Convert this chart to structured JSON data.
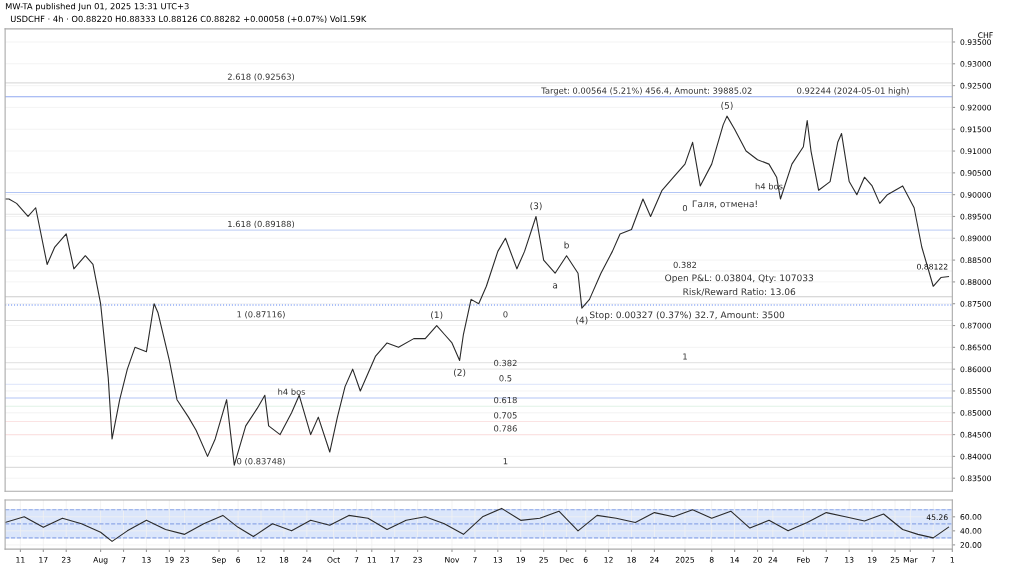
{
  "chart_data": [
    {
      "type": "line",
      "title": "MW-TA published Jun 01, 2025 13:31 UTC+3",
      "subtitle": "USDCHF · 4h · O0.88220 H0.88333 L0.88126 C0.88282 +0.00058 (+0.07%) Vol1.59K",
      "ylabel": "CHF",
      "series": [
        {
          "color": "#2b2b2b",
          "x": [
            "2024-07-07",
            "2024-07-08",
            "2024-07-10",
            "2024-07-13",
            "2024-07-15",
            "2024-07-18",
            "2024-07-20",
            "2024-07-23",
            "2024-07-25",
            "2024-07-28",
            "2024-07-30",
            "2024-08-01",
            "2024-08-03",
            "2024-08-04",
            "2024-08-06",
            "2024-08-08",
            "2024-08-10",
            "2024-08-13",
            "2024-08-15",
            "2024-08-16",
            "2024-08-19",
            "2024-08-21",
            "2024-08-24",
            "2024-08-26",
            "2024-08-29",
            "2024-08-31",
            "2024-09-03",
            "2024-09-05",
            "2024-09-08",
            "2024-09-11",
            "2024-09-13",
            "2024-09-14",
            "2024-09-17",
            "2024-09-20",
            "2024-09-22",
            "2024-09-25",
            "2024-09-27",
            "2024-09-30",
            "2024-10-02",
            "2024-10-04",
            "2024-10-06",
            "2024-10-08",
            "2024-10-10",
            "2024-10-12",
            "2024-10-15",
            "2024-10-18",
            "2024-10-22",
            "2024-10-25",
            "2024-10-28",
            "2024-10-30",
            "2024-11-01",
            "2024-11-03",
            "2024-11-04",
            "2024-11-06",
            "2024-11-08",
            "2024-11-10",
            "2024-11-13",
            "2024-11-15",
            "2024-11-18",
            "2024-11-20",
            "2024-11-23",
            "2024-11-25",
            "2024-11-28",
            "2024-12-01",
            "2024-12-04",
            "2024-12-05",
            "2024-12-07",
            "2024-12-10",
            "2024-12-13",
            "2024-12-15",
            "2024-12-18",
            "2024-12-21",
            "2024-12-23",
            "2024-12-26",
            "2024-12-29",
            "2025-01-01",
            "2025-01-03",
            "2025-01-05",
            "2025-01-08",
            "2025-01-11",
            "2025-01-12",
            "2025-01-14",
            "2025-01-17",
            "2025-01-20",
            "2025-01-23",
            "2025-01-25",
            "2025-01-26",
            "2025-01-29",
            "2025-02-01",
            "2025-02-02",
            "2025-02-03",
            "2025-02-05",
            "2025-02-08",
            "2025-02-10",
            "2025-02-11",
            "2025-02-13",
            "2025-02-15",
            "2025-02-17",
            "2025-02-19",
            "2025-02-21",
            "2025-02-23",
            "2025-02-27",
            "2025-03-02",
            "2025-03-04",
            "2025-03-07",
            "2025-03-09",
            "2025-03-11"
          ],
          "values": [
            0.899,
            0.899,
            0.898,
            0.895,
            0.897,
            0.884,
            0.888,
            0.891,
            0.883,
            0.886,
            0.884,
            0.875,
            0.858,
            0.844,
            0.853,
            0.86,
            0.865,
            0.864,
            0.875,
            0.873,
            0.862,
            0.853,
            0.849,
            0.846,
            0.84,
            0.844,
            0.853,
            0.838,
            0.847,
            0.851,
            0.854,
            0.847,
            0.845,
            0.85,
            0.854,
            0.845,
            0.849,
            0.841,
            0.849,
            0.856,
            0.86,
            0.855,
            0.859,
            0.863,
            0.866,
            0.865,
            0.867,
            0.867,
            0.87,
            0.868,
            0.866,
            0.862,
            0.868,
            0.876,
            0.875,
            0.879,
            0.887,
            0.89,
            0.883,
            0.887,
            0.895,
            0.885,
            0.882,
            0.886,
            0.882,
            0.874,
            0.876,
            0.882,
            0.887,
            0.891,
            0.892,
            0.899,
            0.895,
            0.901,
            0.904,
            0.907,
            0.912,
            0.902,
            0.907,
            0.916,
            0.918,
            0.915,
            0.91,
            0.908,
            0.907,
            0.904,
            0.899,
            0.907,
            0.911,
            0.917,
            0.91,
            0.901,
            0.903,
            0.912,
            0.914,
            0.903,
            0.9,
            0.904,
            0.902,
            0.898,
            0.9,
            0.902,
            0.897,
            0.888,
            0.879,
            0.881,
            0.88122
          ]
        }
      ],
      "xlim": [
        "2024-07-07",
        "2025-03-12"
      ],
      "ylim": [
        0.832,
        0.938
      ],
      "yticks": [
        {
          "value": 0.835,
          "label": "0.83500"
        },
        {
          "value": 0.84,
          "label": "0.84000"
        },
        {
          "value": 0.845,
          "label": "0.84500"
        },
        {
          "value": 0.85,
          "label": "0.85000"
        },
        {
          "value": 0.855,
          "label": "0.85500"
        },
        {
          "value": 0.86,
          "label": "0.86000"
        },
        {
          "value": 0.865,
          "label": "0.86500"
        },
        {
          "value": 0.87,
          "label": "0.87000"
        },
        {
          "value": 0.875,
          "label": "0.87500"
        },
        {
          "value": 0.88,
          "label": "0.88000"
        },
        {
          "value": 0.885,
          "label": "0.88500"
        },
        {
          "value": 0.89,
          "label": "0.89000"
        },
        {
          "value": 0.895,
          "label": "0.89500"
        },
        {
          "value": 0.9,
          "label": "0.90000"
        },
        {
          "value": 0.905,
          "label": "0.90500"
        },
        {
          "value": 0.91,
          "label": "0.91000"
        },
        {
          "value": 0.915,
          "label": "0.91500"
        },
        {
          "value": 0.92,
          "label": "0.92000"
        },
        {
          "value": 0.925,
          "label": "0.92500"
        },
        {
          "value": 0.93,
          "label": "0.93000"
        },
        {
          "value": 0.935,
          "label": "0.93500"
        }
      ],
      "tick_labels": "y",
      "grid": true,
      "ref_lines": [
        {
          "axis": "y",
          "value": 0.92244,
          "color": "#90a9f0",
          "line_style": "solid"
        },
        {
          "axis": "y",
          "value": 0.8747,
          "color": "#5b83f0",
          "line_style": "dotted"
        },
        {
          "axis": "y",
          "value": 0.92563,
          "color": "#dddddd",
          "line_style": "solid"
        },
        {
          "axis": "y",
          "value": 0.89188,
          "color": "#c9d6f7",
          "line_style": "solid"
        },
        {
          "axis": "y",
          "value": 0.87116,
          "color": "#dddddd",
          "line_style": "solid"
        },
        {
          "axis": "y",
          "value": 0.83748,
          "color": "#dddddd",
          "line_style": "solid"
        },
        {
          "axis": "y",
          "value": 0.86,
          "color": "#eeeeee",
          "line_style": "solid"
        },
        {
          "axis": "y",
          "value": 0.8565,
          "color": "#e3e9fb",
          "line_style": "solid"
        },
        {
          "axis": "y",
          "value": 0.8515,
          "color": "#e0f2e6",
          "line_style": "solid"
        },
        {
          "axis": "y",
          "value": 0.848,
          "color": "#fbe3e3",
          "line_style": "solid"
        },
        {
          "axis": "y",
          "value": 0.845,
          "color": "#fbe3e3",
          "line_style": "solid"
        },
        {
          "axis": "y",
          "value": 0.8955,
          "color": "#e6e6e6",
          "line_style": "solid"
        },
        {
          "axis": "y",
          "value": 0.8825,
          "color": "#eeeeee",
          "line_style": "solid"
        },
        {
          "axis": "y",
          "value": 0.8615,
          "color": "#e6e6e6",
          "line_style": "solid"
        },
        {
          "axis": "y",
          "value": 0.9005,
          "color": "#b3c6f5",
          "line_style": "solid"
        },
        {
          "axis": "y",
          "value": 0.8534,
          "color": "#b3c6f5",
          "line_style": "solid"
        },
        {
          "axis": "y",
          "value": 0.8766,
          "color": "#cccccc",
          "line_style": "solid"
        }
      ],
      "annotations": [
        {
          "text": "(1)",
          "x": "2024-10-28",
          "y": 0.87
        },
        {
          "text": "(2)",
          "x": "2024-11-03",
          "y": 0.862
        },
        {
          "text": "(3)",
          "x": "2024-11-23",
          "y": 0.895
        },
        {
          "text": "(4)",
          "x": "2024-12-05",
          "y": 0.874
        },
        {
          "text": "(5)",
          "x": "2025-01-12",
          "y": 0.918
        },
        {
          "text": "a",
          "x": "2024-11-28",
          "y": 0.882
        },
        {
          "text": "b",
          "x": "2024-12-01",
          "y": 0.886
        },
        "Галя, отмена!",
        {
          "text": "h4 bos",
          "x": "2025-01-23",
          "y": 0.9005
        },
        {
          "text": "h4 bos",
          "x": "2024-09-20",
          "y": 0.8534
        },
        {
          "text": "2.618 (0.92563)",
          "x": "2024-09-12",
          "y": 0.92563
        },
        {
          "text": "1.618 (0.89188)",
          "x": "2024-09-12",
          "y": 0.89188
        },
        {
          "text": "1 (0.87116)",
          "x": "2024-09-12",
          "y": 0.87116
        },
        {
          "text": "0 (0.83748)",
          "x": "2024-09-12",
          "y": 0.83748
        },
        {
          "text": "0",
          "x": "2024-11-15",
          "y": 0.87116
        },
        {
          "text": "0.382",
          "x": "2024-11-15",
          "y": 0.86
        },
        {
          "text": "0.5",
          "x": "2024-11-15",
          "y": 0.8565
        },
        {
          "text": "0.618",
          "x": "2024-11-15",
          "y": 0.8515
        },
        {
          "text": "0.705",
          "x": "2024-11-15",
          "y": 0.848
        },
        {
          "text": "0.786",
          "x": "2024-11-15",
          "y": 0.845
        },
        {
          "text": "1",
          "x": "2024-11-15",
          "y": 0.83748
        },
        {
          "text": "1",
          "x": "2025-01-01",
          "y": 0.8615
        },
        {
          "text": "0",
          "x": "2025-01-01",
          "y": 0.8955
        },
        {
          "text": "0.382",
          "x": "2025-01-01",
          "y": 0.8825
        },
        {
          "text": "0.92244 (2024-05-01 high)",
          "x": "2025-02-14",
          "y": 0.92244
        },
        {
          "text": "Target: 0.00564 (5.21%) 456.4, Amount: 39885.02",
          "x": "2024-12-22",
          "y": 0.92244
        },
        "Open P&L: 0.03804, Qty: 107033",
        "Risk/Reward Ratio: 13.06",
        "Stop: 0.00327 (0.37%) 32.7, Amount: 3500",
        {
          "text": "0.88122",
          "x": "2025-03-11",
          "y": 0.88122
        }
      ]
    },
    {
      "type": "line",
      "series": [
        {
          "color": "#2b2b2b",
          "x": [
            "2024-07-07",
            "2024-07-12",
            "2024-07-17",
            "2024-07-22",
            "2024-07-27",
            "2024-08-01",
            "2024-08-04",
            "2024-08-08",
            "2024-08-13",
            "2024-08-18",
            "2024-08-23",
            "2024-08-28",
            "2024-09-02",
            "2024-09-06",
            "2024-09-10",
            "2024-09-15",
            "2024-09-20",
            "2024-09-25",
            "2024-09-30",
            "2024-10-05",
            "2024-10-10",
            "2024-10-15",
            "2024-10-20",
            "2024-10-25",
            "2024-10-30",
            "2024-11-04",
            "2024-11-09",
            "2024-11-14",
            "2024-11-19",
            "2024-11-24",
            "2024-11-29",
            "2024-12-04",
            "2024-12-09",
            "2024-12-14",
            "2024-12-19",
            "2024-12-24",
            "2024-12-29",
            "2025-01-03",
            "2025-01-08",
            "2025-01-13",
            "2025-01-18",
            "2025-01-23",
            "2025-01-28",
            "2025-02-02",
            "2025-02-07",
            "2025-02-12",
            "2025-02-17",
            "2025-02-22",
            "2025-02-27",
            "2025-03-03",
            "2025-03-07",
            "2025-03-11"
          ],
          "values": [
            52,
            60,
            45,
            58,
            50,
            38,
            25,
            40,
            55,
            42,
            35,
            50,
            62,
            45,
            32,
            50,
            40,
            55,
            48,
            62,
            58,
            42,
            55,
            60,
            50,
            35,
            60,
            72,
            55,
            58,
            68,
            40,
            62,
            58,
            52,
            66,
            60,
            70,
            58,
            68,
            44,
            55,
            40,
            52,
            66,
            60,
            54,
            64,
            42,
            35,
            30,
            45.26
          ]
        }
      ],
      "xlim": [
        "2024-07-07",
        "2025-03-12"
      ],
      "ylim": [
        14,
        84
      ],
      "yticks": [
        {
          "value": 20,
          "label": "20.00"
        },
        {
          "value": 40,
          "label": "40.00"
        },
        {
          "value": 60,
          "label": "60.00"
        }
      ],
      "xticks": [
        {
          "value": "2024-07-11",
          "label": "11"
        },
        {
          "value": "2024-07-17",
          "label": "17"
        },
        {
          "value": "2024-07-23",
          "label": "23"
        },
        {
          "value": "2024-08-01",
          "label": "Aug"
        },
        {
          "value": "2024-08-07",
          "label": "7"
        },
        {
          "value": "2024-08-13",
          "label": "13"
        },
        {
          "value": "2024-08-19",
          "label": "19"
        },
        {
          "value": "2024-08-23",
          "label": "23"
        },
        {
          "value": "2024-09-01",
          "label": "Sep"
        },
        {
          "value": "2024-09-06",
          "label": "6"
        },
        {
          "value": "2024-09-12",
          "label": "12"
        },
        {
          "value": "2024-09-18",
          "label": "18"
        },
        {
          "value": "2024-09-24",
          "label": "24"
        },
        {
          "value": "2024-10-01",
          "label": "Oct"
        },
        {
          "value": "2024-10-07",
          "label": "7"
        },
        {
          "value": "2024-10-11",
          "label": "11"
        },
        {
          "value": "2024-10-17",
          "label": "17"
        },
        {
          "value": "2024-10-23",
          "label": "23"
        },
        {
          "value": "2024-11-01",
          "label": "Nov"
        },
        {
          "value": "2024-11-07",
          "label": "7"
        },
        {
          "value": "2024-11-13",
          "label": "13"
        },
        {
          "value": "2024-11-19",
          "label": "19"
        },
        {
          "value": "2024-11-25",
          "label": "25"
        },
        {
          "value": "2024-12-01",
          "label": "Dec"
        },
        {
          "value": "2024-12-06",
          "label": "6"
        },
        {
          "value": "2024-12-12",
          "label": "12"
        },
        {
          "value": "2024-12-18",
          "label": "18"
        },
        {
          "value": "2024-12-24",
          "label": "24"
        },
        {
          "value": "2025-01-01",
          "label": "2025"
        },
        {
          "value": "2025-01-08",
          "label": "8"
        },
        {
          "value": "2025-01-14",
          "label": "14"
        },
        {
          "value": "2025-01-20",
          "label": "20"
        },
        {
          "value": "2025-01-24",
          "label": "24"
        },
        {
          "value": "2025-02-01",
          "label": "Feb"
        },
        {
          "value": "2025-02-07",
          "label": "7"
        },
        {
          "value": "2025-02-13",
          "label": "13"
        },
        {
          "value": "2025-02-19",
          "label": "19"
        },
        {
          "value": "2025-02-25",
          "label": "25"
        },
        {
          "value": "2025-03-01",
          "label": "Mar"
        },
        {
          "value": "2025-03-07",
          "label": "7"
        },
        {
          "value": "2025-03-12",
          "label": "1"
        }
      ],
      "grid": true,
      "bands": [
        {
          "axis": "y",
          "from": 30,
          "to": 70,
          "color": "#dbe6fb"
        }
      ],
      "ref_lines": [
        {
          "axis": "y",
          "value": 70,
          "color": "#8fa8e8",
          "line_style": "dashed"
        },
        {
          "axis": "y",
          "value": 50,
          "color": "#8fa8e8",
          "line_style": "dashed"
        },
        {
          "axis": "y",
          "value": 30,
          "color": "#8fa8e8",
          "line_style": "dashed"
        }
      ],
      "annotations": [
        {
          "text": "45.26",
          "x": "2025-03-11",
          "y": 45.26
        }
      ]
    }
  ]
}
